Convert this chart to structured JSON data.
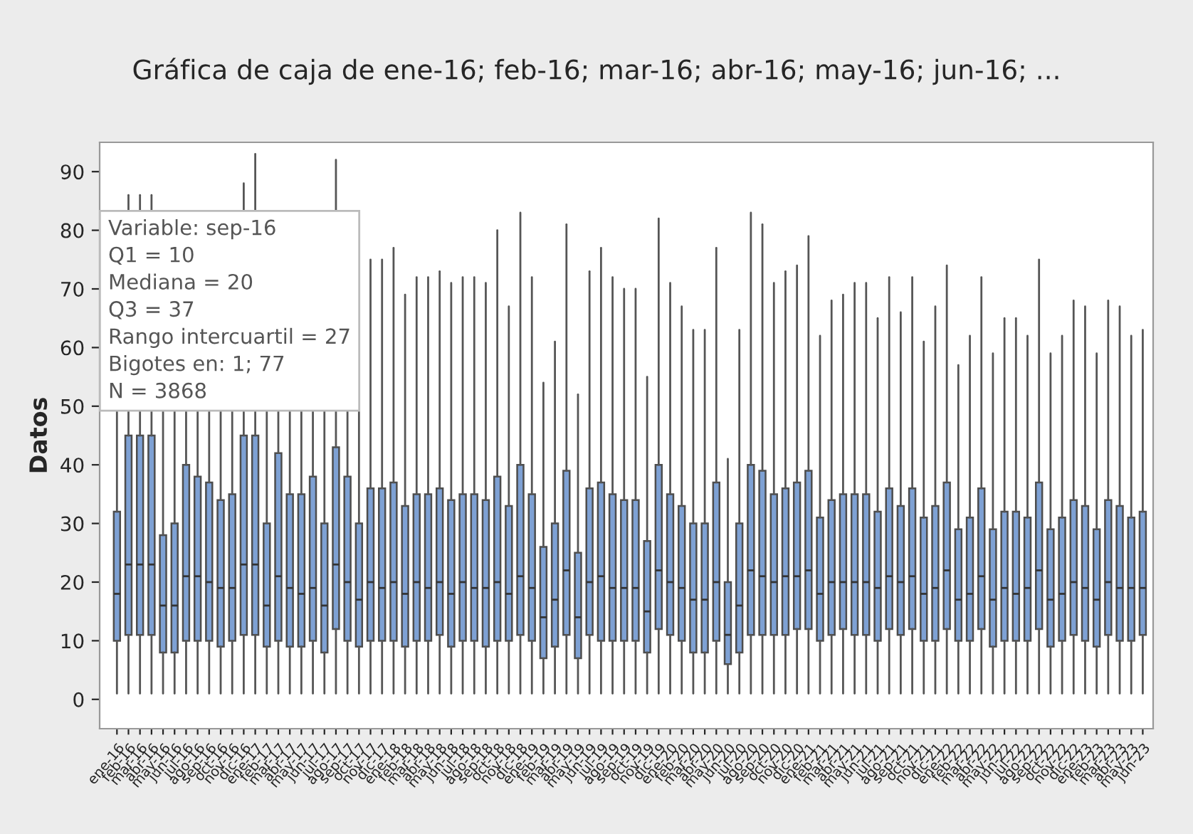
{
  "chart_data": {
    "type": "box",
    "title": "Gráfica de caja de ene-16; feb-16; mar-16; abr-16; may-16; jun-16; ...",
    "ylabel": "Datos",
    "categories": [
      "ene-16",
      "feb-16",
      "mar-16",
      "abr-16",
      "may-16",
      "jun-16",
      "jul-16",
      "ago-16",
      "sep-16",
      "oct-16",
      "nov-16",
      "dic-16",
      "ene-17",
      "feb-17",
      "mar-17",
      "abr-17",
      "may-17",
      "jun-17",
      "jul-17",
      "ago-17",
      "sep-17",
      "oct-17",
      "nov-17",
      "dic-17",
      "ene-18",
      "feb-18",
      "mar-18",
      "abr-18",
      "may-18",
      "jun-18",
      "jul-18",
      "ago-18",
      "sep-18",
      "oct-18",
      "nov-18",
      "dic-18",
      "ene-19",
      "feb-19",
      "mar-19",
      "abr-19",
      "may-19",
      "jun-19",
      "jul-19",
      "ago-19",
      "sep-19",
      "oct-19",
      "nov-19",
      "dic-19",
      "ene-20",
      "feb-20",
      "mar-20",
      "abr-20",
      "may-20",
      "jun-20",
      "jul-20",
      "ago-20",
      "sep-20",
      "oct-20",
      "nov-20",
      "dic-20",
      "ene-21",
      "feb-21",
      "mar-21",
      "abr-21",
      "may-21",
      "jun-21",
      "jul-21",
      "ago-21",
      "sep-21",
      "oct-21",
      "nov-21",
      "dic-21",
      "ene-22",
      "feb-22",
      "mar-22",
      "abr-22",
      "may-22",
      "jun-22",
      "jul-22",
      "ago-22",
      "sep-22",
      "oct-22",
      "nov-22",
      "dic-22",
      "ene-23",
      "feb-23",
      "mar-23",
      "abr-23",
      "may-23",
      "jun-23"
    ],
    "color": "#7ea1d4",
    "boxes": [
      {
        "low": 1,
        "q1": 10,
        "median": 18,
        "q3": 32,
        "high": 75
      },
      {
        "low": 1,
        "q1": 11,
        "median": 23,
        "q3": 45,
        "high": 86
      },
      {
        "low": 1,
        "q1": 11,
        "median": 23,
        "q3": 45,
        "high": 86
      },
      {
        "low": 1,
        "q1": 11,
        "median": 23,
        "q3": 45,
        "high": 86
      },
      {
        "low": 1,
        "q1": 8,
        "median": 16,
        "q3": 28,
        "high": 60
      },
      {
        "low": 1,
        "q1": 8,
        "median": 16,
        "q3": 30,
        "high": 65
      },
      {
        "low": 1,
        "q1": 10,
        "median": 21,
        "q3": 40,
        "high": 80
      },
      {
        "low": 1,
        "q1": 10,
        "median": 21,
        "q3": 38,
        "high": 77
      },
      {
        "low": 1,
        "q1": 10,
        "median": 20,
        "q3": 37,
        "high": 77
      },
      {
        "low": 1,
        "q1": 9,
        "median": 19,
        "q3": 34,
        "high": 72
      },
      {
        "low": 1,
        "q1": 10,
        "median": 19,
        "q3": 35,
        "high": 72
      },
      {
        "low": 1,
        "q1": 11,
        "median": 23,
        "q3": 45,
        "high": 88
      },
      {
        "low": 1,
        "q1": 11,
        "median": 23,
        "q3": 45,
        "high": 93
      },
      {
        "low": 1,
        "q1": 9,
        "median": 16,
        "q3": 30,
        "high": 65
      },
      {
        "low": 1,
        "q1": 10,
        "median": 21,
        "q3": 42,
        "high": 78
      },
      {
        "low": 1,
        "q1": 9,
        "median": 19,
        "q3": 35,
        "high": 72
      },
      {
        "low": 1,
        "q1": 9,
        "median": 18,
        "q3": 35,
        "high": 72
      },
      {
        "low": 1,
        "q1": 10,
        "median": 19,
        "q3": 38,
        "high": 77
      },
      {
        "low": 1,
        "q1": 8,
        "median": 16,
        "q3": 30,
        "high": 65
      },
      {
        "low": 1,
        "q1": 12,
        "median": 23,
        "q3": 43,
        "high": 92
      },
      {
        "low": 1,
        "q1": 10,
        "median": 20,
        "q3": 38,
        "high": 80
      },
      {
        "low": 1,
        "q1": 9,
        "median": 17,
        "q3": 30,
        "high": 61
      },
      {
        "low": 1,
        "q1": 10,
        "median": 20,
        "q3": 36,
        "high": 75
      },
      {
        "low": 1,
        "q1": 10,
        "median": 19,
        "q3": 36,
        "high": 75
      },
      {
        "low": 1,
        "q1": 10,
        "median": 20,
        "q3": 37,
        "high": 77
      },
      {
        "low": 1,
        "q1": 9,
        "median": 18,
        "q3": 33,
        "high": 69
      },
      {
        "low": 1,
        "q1": 10,
        "median": 20,
        "q3": 35,
        "high": 72
      },
      {
        "low": 1,
        "q1": 10,
        "median": 19,
        "q3": 35,
        "high": 72
      },
      {
        "low": 1,
        "q1": 11,
        "median": 20,
        "q3": 36,
        "high": 73
      },
      {
        "low": 1,
        "q1": 9,
        "median": 18,
        "q3": 34,
        "high": 71
      },
      {
        "low": 1,
        "q1": 10,
        "median": 20,
        "q3": 35,
        "high": 72
      },
      {
        "low": 1,
        "q1": 10,
        "median": 19,
        "q3": 35,
        "high": 72
      },
      {
        "low": 1,
        "q1": 9,
        "median": 19,
        "q3": 34,
        "high": 71
      },
      {
        "low": 1,
        "q1": 10,
        "median": 20,
        "q3": 38,
        "high": 80
      },
      {
        "low": 1,
        "q1": 10,
        "median": 18,
        "q3": 33,
        "high": 67
      },
      {
        "low": 1,
        "q1": 11,
        "median": 21,
        "q3": 40,
        "high": 83
      },
      {
        "low": 1,
        "q1": 10,
        "median": 19,
        "q3": 35,
        "high": 72
      },
      {
        "low": 1,
        "q1": 7,
        "median": 14,
        "q3": 26,
        "high": 54
      },
      {
        "low": 1,
        "q1": 9,
        "median": 17,
        "q3": 30,
        "high": 61
      },
      {
        "low": 1,
        "q1": 11,
        "median": 22,
        "q3": 39,
        "high": 81
      },
      {
        "low": 1,
        "q1": 7,
        "median": 14,
        "q3": 25,
        "high": 52
      },
      {
        "low": 1,
        "q1": 11,
        "median": 20,
        "q3": 36,
        "high": 73
      },
      {
        "low": 1,
        "q1": 10,
        "median": 21,
        "q3": 37,
        "high": 77
      },
      {
        "low": 1,
        "q1": 10,
        "median": 19,
        "q3": 35,
        "high": 72
      },
      {
        "low": 1,
        "q1": 10,
        "median": 19,
        "q3": 34,
        "high": 70
      },
      {
        "low": 1,
        "q1": 10,
        "median": 19,
        "q3": 34,
        "high": 70
      },
      {
        "low": 1,
        "q1": 8,
        "median": 15,
        "q3": 27,
        "high": 55
      },
      {
        "low": 1,
        "q1": 12,
        "median": 22,
        "q3": 40,
        "high": 82
      },
      {
        "low": 1,
        "q1": 11,
        "median": 20,
        "q3": 35,
        "high": 71
      },
      {
        "low": 1,
        "q1": 10,
        "median": 19,
        "q3": 33,
        "high": 67
      },
      {
        "low": 1,
        "q1": 8,
        "median": 17,
        "q3": 30,
        "high": 63
      },
      {
        "low": 1,
        "q1": 8,
        "median": 17,
        "q3": 30,
        "high": 63
      },
      {
        "low": 1,
        "q1": 10,
        "median": 20,
        "q3": 37,
        "high": 77
      },
      {
        "low": 1,
        "q1": 6,
        "median": 11,
        "q3": 20,
        "high": 41
      },
      {
        "low": 1,
        "q1": 8,
        "median": 16,
        "q3": 30,
        "high": 63
      },
      {
        "low": 1,
        "q1": 11,
        "median": 22,
        "q3": 40,
        "high": 83
      },
      {
        "low": 1,
        "q1": 11,
        "median": 21,
        "q3": 39,
        "high": 81
      },
      {
        "low": 1,
        "q1": 11,
        "median": 20,
        "q3": 35,
        "high": 71
      },
      {
        "low": 1,
        "q1": 11,
        "median": 21,
        "q3": 36,
        "high": 73
      },
      {
        "low": 1,
        "q1": 12,
        "median": 21,
        "q3": 37,
        "high": 74
      },
      {
        "low": 1,
        "q1": 12,
        "median": 22,
        "q3": 39,
        "high": 79
      },
      {
        "low": 1,
        "q1": 10,
        "median": 18,
        "q3": 31,
        "high": 62
      },
      {
        "low": 1,
        "q1": 11,
        "median": 20,
        "q3": 34,
        "high": 68
      },
      {
        "low": 1,
        "q1": 12,
        "median": 20,
        "q3": 35,
        "high": 69
      },
      {
        "low": 1,
        "q1": 11,
        "median": 20,
        "q3": 35,
        "high": 71
      },
      {
        "low": 1,
        "q1": 11,
        "median": 20,
        "q3": 35,
        "high": 71
      },
      {
        "low": 1,
        "q1": 10,
        "median": 19,
        "q3": 32,
        "high": 65
      },
      {
        "low": 1,
        "q1": 12,
        "median": 21,
        "q3": 36,
        "high": 72
      },
      {
        "low": 1,
        "q1": 11,
        "median": 20,
        "q3": 33,
        "high": 66
      },
      {
        "low": 1,
        "q1": 12,
        "median": 21,
        "q3": 36,
        "high": 72
      },
      {
        "low": 1,
        "q1": 10,
        "median": 18,
        "q3": 31,
        "high": 61
      },
      {
        "low": 1,
        "q1": 10,
        "median": 19,
        "q3": 33,
        "high": 67
      },
      {
        "low": 1,
        "q1": 12,
        "median": 22,
        "q3": 37,
        "high": 74
      },
      {
        "low": 1,
        "q1": 10,
        "median": 17,
        "q3": 29,
        "high": 57
      },
      {
        "low": 1,
        "q1": 10,
        "median": 18,
        "q3": 31,
        "high": 62
      },
      {
        "low": 1,
        "q1": 12,
        "median": 21,
        "q3": 36,
        "high": 72
      },
      {
        "low": 1,
        "q1": 9,
        "median": 17,
        "q3": 29,
        "high": 59
      },
      {
        "low": 1,
        "q1": 10,
        "median": 19,
        "q3": 32,
        "high": 65
      },
      {
        "low": 1,
        "q1": 10,
        "median": 18,
        "q3": 32,
        "high": 65
      },
      {
        "low": 1,
        "q1": 10,
        "median": 19,
        "q3": 31,
        "high": 62
      },
      {
        "low": 1,
        "q1": 12,
        "median": 22,
        "q3": 37,
        "high": 75
      },
      {
        "low": 1,
        "q1": 9,
        "median": 17,
        "q3": 29,
        "high": 59
      },
      {
        "low": 1,
        "q1": 10,
        "median": 18,
        "q3": 31,
        "high": 62
      },
      {
        "low": 1,
        "q1": 11,
        "median": 20,
        "q3": 34,
        "high": 68
      },
      {
        "low": 1,
        "q1": 10,
        "median": 19,
        "q3": 33,
        "high": 67
      },
      {
        "low": 1,
        "q1": 9,
        "median": 17,
        "q3": 29,
        "high": 59
      },
      {
        "low": 1,
        "q1": 11,
        "median": 20,
        "q3": 34,
        "high": 68
      },
      {
        "low": 1,
        "q1": 10,
        "median": 19,
        "q3": 33,
        "high": 67
      },
      {
        "low": 1,
        "q1": 10,
        "median": 19,
        "q3": 31,
        "high": 62
      },
      {
        "low": 1,
        "q1": 11,
        "median": 19,
        "q3": 32,
        "high": 63
      }
    ],
    "ylim": [
      -5,
      95
    ],
    "yticks": [
      0,
      10,
      20,
      30,
      40,
      50,
      60,
      70,
      80,
      90
    ],
    "grid": false,
    "annotations": [
      "Variable: sep-16\nQ1 = 10\nMediana = 20\nQ3 = 37\nRango intercuartil = 27\nBigotes en: 1; 77\nN = 3868"
    ]
  }
}
